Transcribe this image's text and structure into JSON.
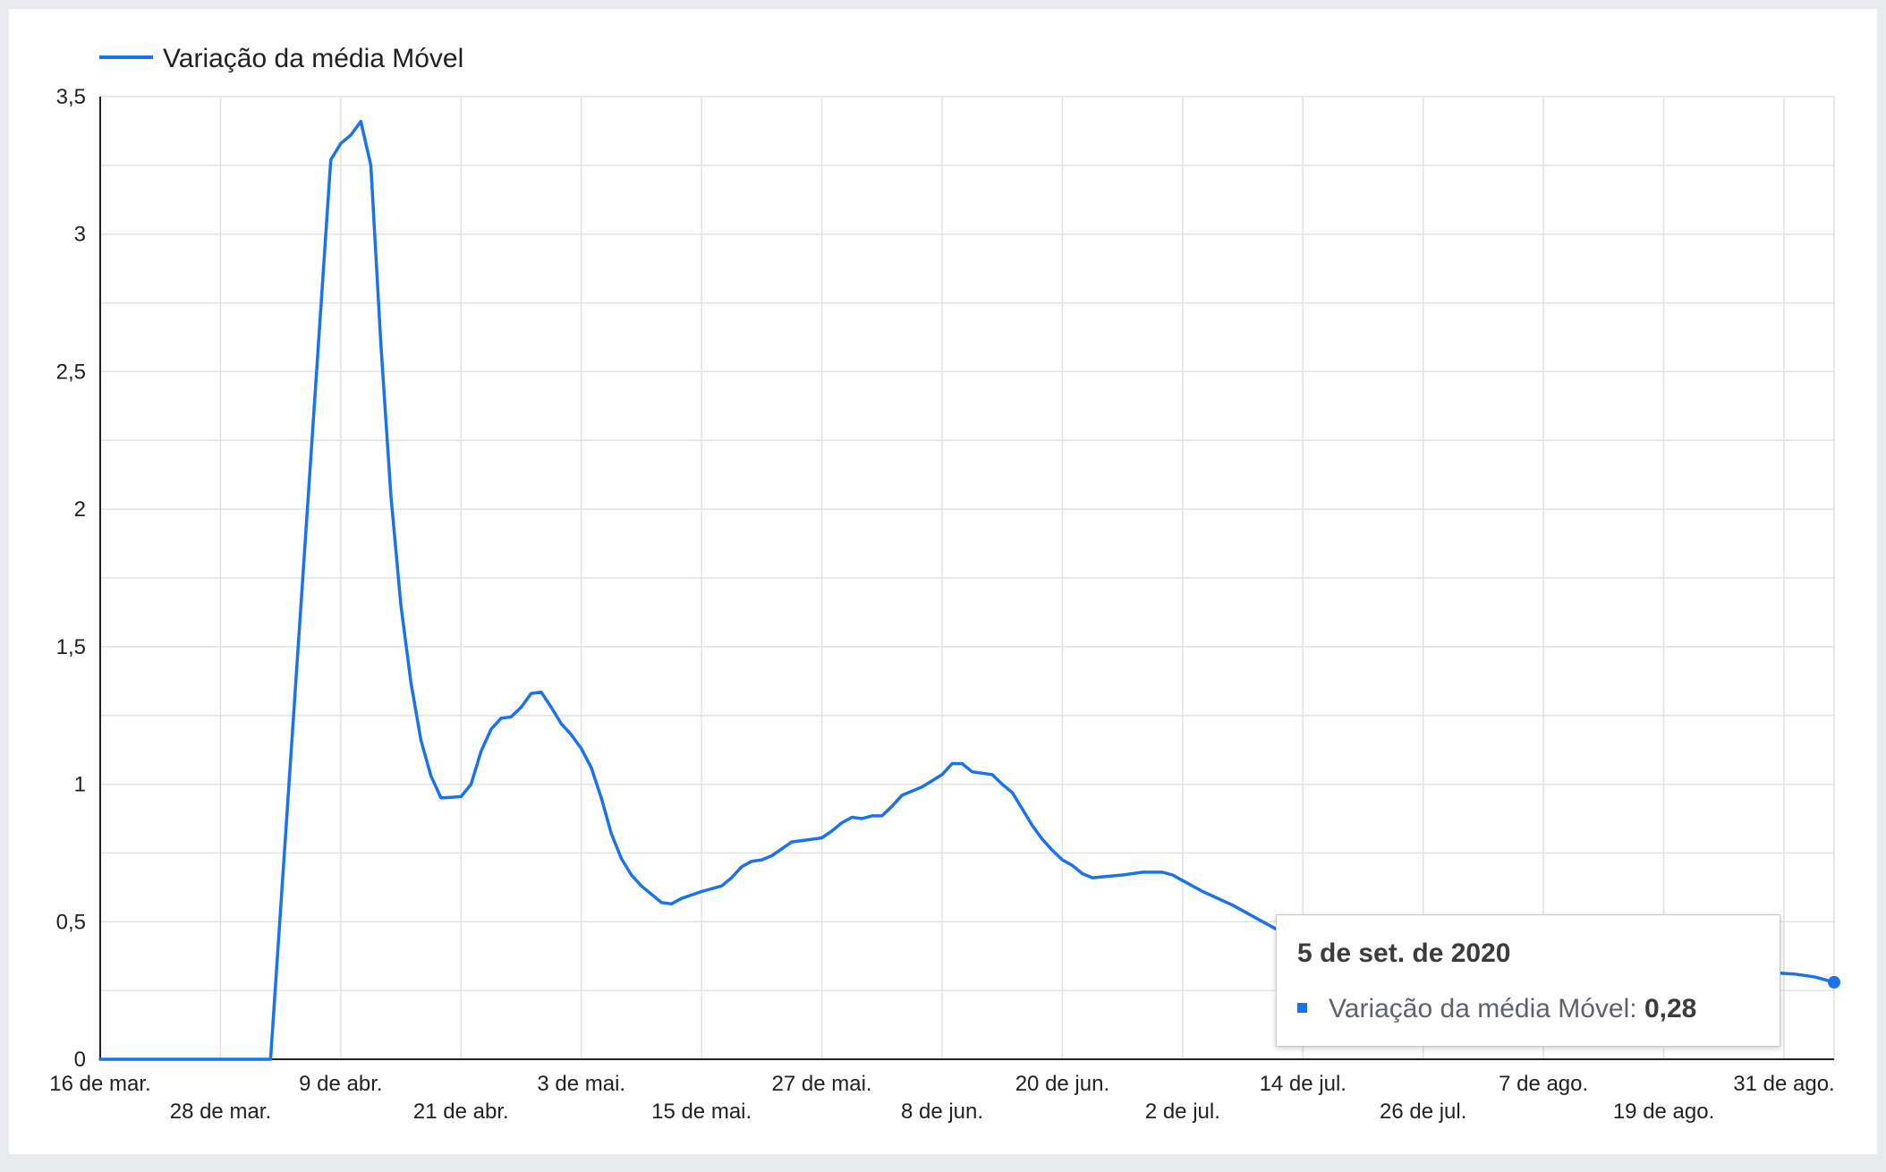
{
  "chart_data": {
    "type": "line",
    "series": [
      {
        "name": "Variação da média Móvel",
        "color": "#1a73e8",
        "points": [
          [
            "2020-03-16",
            0
          ],
          [
            "2020-04-02",
            0
          ],
          [
            "2020-04-08",
            3.27
          ],
          [
            "2020-04-09",
            3.33
          ],
          [
            "2020-04-10",
            3.36
          ],
          [
            "2020-04-11",
            3.41
          ],
          [
            "2020-04-12",
            3.25
          ],
          [
            "2020-04-13",
            2.6
          ],
          [
            "2020-04-14",
            2.05
          ],
          [
            "2020-04-15",
            1.65
          ],
          [
            "2020-04-16",
            1.37
          ],
          [
            "2020-04-17",
            1.16
          ],
          [
            "2020-04-18",
            1.03
          ],
          [
            "2020-04-19",
            0.95
          ],
          [
            "2020-04-21",
            0.955
          ],
          [
            "2020-04-22",
            1.0
          ],
          [
            "2020-04-23",
            1.12
          ],
          [
            "2020-04-24",
            1.2
          ],
          [
            "2020-04-25",
            1.24
          ],
          [
            "2020-04-26",
            1.245
          ],
          [
            "2020-04-27",
            1.28
          ],
          [
            "2020-04-28",
            1.33
          ],
          [
            "2020-04-29",
            1.335
          ],
          [
            "2020-04-30",
            1.28
          ],
          [
            "2020-05-01",
            1.22
          ],
          [
            "2020-05-02",
            1.18
          ],
          [
            "2020-05-03",
            1.13
          ],
          [
            "2020-05-04",
            1.06
          ],
          [
            "2020-05-05",
            0.95
          ],
          [
            "2020-05-06",
            0.82
          ],
          [
            "2020-05-07",
            0.73
          ],
          [
            "2020-05-08",
            0.67
          ],
          [
            "2020-05-09",
            0.63
          ],
          [
            "2020-05-10",
            0.6
          ],
          [
            "2020-05-11",
            0.57
          ],
          [
            "2020-05-12",
            0.565
          ],
          [
            "2020-05-13",
            0.585
          ],
          [
            "2020-05-15",
            0.61
          ],
          [
            "2020-05-17",
            0.63
          ],
          [
            "2020-05-18",
            0.66
          ],
          [
            "2020-05-19",
            0.7
          ],
          [
            "2020-05-20",
            0.72
          ],
          [
            "2020-05-21",
            0.725
          ],
          [
            "2020-05-22",
            0.74
          ],
          [
            "2020-05-24",
            0.79
          ],
          [
            "2020-05-26",
            0.8
          ],
          [
            "2020-05-27",
            0.805
          ],
          [
            "2020-05-28",
            0.83
          ],
          [
            "2020-05-29",
            0.86
          ],
          [
            "2020-05-30",
            0.88
          ],
          [
            "2020-05-31",
            0.875
          ],
          [
            "2020-06-01",
            0.885
          ],
          [
            "2020-06-02",
            0.885
          ],
          [
            "2020-06-03",
            0.92
          ],
          [
            "2020-06-04",
            0.96
          ],
          [
            "2020-06-06",
            0.99
          ],
          [
            "2020-06-08",
            1.035
          ],
          [
            "2020-06-09",
            1.075
          ],
          [
            "2020-06-10",
            1.075
          ],
          [
            "2020-06-11",
            1.045
          ],
          [
            "2020-06-13",
            1.035
          ],
          [
            "2020-06-14",
            1.0
          ],
          [
            "2020-06-15",
            0.97
          ],
          [
            "2020-06-16",
            0.91
          ],
          [
            "2020-06-17",
            0.85
          ],
          [
            "2020-06-18",
            0.8
          ],
          [
            "2020-06-19",
            0.76
          ],
          [
            "2020-06-20",
            0.725
          ],
          [
            "2020-06-21",
            0.705
          ],
          [
            "2020-06-22",
            0.675
          ],
          [
            "2020-06-23",
            0.66
          ],
          [
            "2020-06-26",
            0.67
          ],
          [
            "2020-06-28",
            0.68
          ],
          [
            "2020-06-30",
            0.68
          ],
          [
            "2020-07-01",
            0.67
          ],
          [
            "2020-07-02",
            0.65
          ],
          [
            "2020-07-04",
            0.61
          ],
          [
            "2020-07-07",
            0.56
          ],
          [
            "2020-07-10",
            0.5
          ],
          [
            "2020-07-13",
            0.44
          ],
          [
            "2020-07-16",
            0.4
          ],
          [
            "2020-07-20",
            0.37
          ],
          [
            "2020-07-25",
            0.34
          ],
          [
            "2020-07-30",
            0.33
          ],
          [
            "2020-08-05",
            0.32
          ],
          [
            "2020-08-12",
            0.315
          ],
          [
            "2020-08-19",
            0.315
          ],
          [
            "2020-08-26",
            0.315
          ],
          [
            "2020-08-30",
            0.315
          ],
          [
            "2020-09-01",
            0.31
          ],
          [
            "2020-09-03",
            0.3
          ],
          [
            "2020-09-05",
            0.28
          ]
        ]
      }
    ],
    "x_ticks_row1": [
      "16 de mar.",
      "9 de abr.",
      "3 de mai.",
      "27 de mai.",
      "20 de jun.",
      "14 de jul.",
      "7 de ago.",
      "31 de ago."
    ],
    "x_ticks_row2": [
      "28 de mar.",
      "21 de abr.",
      "15 de mai.",
      "8 de jun.",
      "2 de jul.",
      "26 de jul.",
      "19 de ago."
    ],
    "x_tick_dates_row1": [
      "2020-03-16",
      "2020-04-09",
      "2020-05-03",
      "2020-05-27",
      "2020-06-20",
      "2020-07-14",
      "2020-08-07",
      "2020-08-31"
    ],
    "x_tick_dates_row2": [
      "2020-03-28",
      "2020-04-21",
      "2020-05-15",
      "2020-06-08",
      "2020-07-02",
      "2020-07-26",
      "2020-08-19"
    ],
    "y_ticks": [
      0,
      0.5,
      1,
      1.5,
      2,
      2.5,
      3,
      3.5
    ],
    "y_tick_labels": [
      "0",
      "0,5",
      "1",
      "1,5",
      "2",
      "2,5",
      "3",
      "3,5"
    ],
    "xlim": [
      "2020-03-16",
      "2020-09-05"
    ],
    "ylim": [
      0,
      3.5
    ],
    "grid": true,
    "legend_position": "top-left",
    "title": "",
    "xlabel": "",
    "ylabel": ""
  },
  "legend": {
    "label": "Variação da média Móvel"
  },
  "tooltip": {
    "date": "5 de set. de 2020",
    "series_label": "Variação da média Móvel:",
    "value": "0,28"
  }
}
